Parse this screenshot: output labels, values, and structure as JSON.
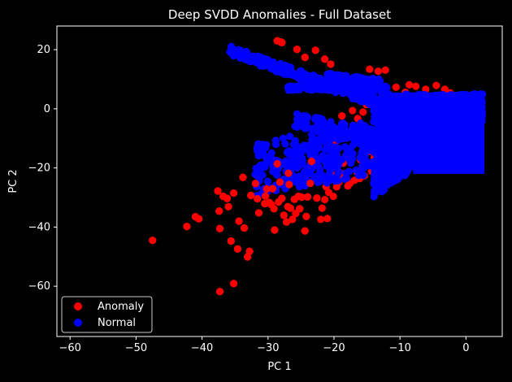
{
  "chart_data": {
    "type": "scatter",
    "title": "Deep SVDD Anomalies - Full Dataset",
    "xlabel": "PC 1",
    "ylabel": "PC 2",
    "xlim": [
      -62,
      5.5
    ],
    "ylim": [
      -77,
      28
    ],
    "xticks": [
      -60,
      -50,
      -40,
      -30,
      -20,
      -10,
      0
    ],
    "yticks": [
      20,
      0,
      -20,
      -40,
      -60
    ],
    "xtick_labels": [
      "−60",
      "−50",
      "−40",
      "−30",
      "−20",
      "−10",
      "0"
    ],
    "ytick_labels": [
      "20",
      "0",
      "−20",
      "−40",
      "−60"
    ],
    "grid": false,
    "legend_position": "lower-left",
    "background": "#000000",
    "series": [
      {
        "name": "Anomaly",
        "color": "#ff0000",
        "points": [
          [
            -47.5,
            -44.5
          ],
          [
            -42.3,
            -39.8
          ],
          [
            -41,
            -36.5
          ],
          [
            -40.5,
            -37.2
          ],
          [
            -37.6,
            -27.8
          ],
          [
            -37.4,
            -34.6
          ],
          [
            -37.3,
            -40.5
          ],
          [
            -37.3,
            -61.8
          ],
          [
            -36.8,
            -29.6
          ],
          [
            -36.2,
            -30.3
          ],
          [
            -36,
            -33.1
          ],
          [
            -35.6,
            -44.7
          ],
          [
            -35.2,
            -28.5
          ],
          [
            -35.2,
            -59.1
          ],
          [
            -34.6,
            -47.4
          ],
          [
            -34.4,
            -38
          ],
          [
            -33.8,
            -23.2
          ],
          [
            -33.6,
            -40.3
          ],
          [
            -33.1,
            -50.1
          ],
          [
            -32.8,
            -48.2
          ],
          [
            -32.6,
            -29.3
          ],
          [
            -31.9,
            -25.3
          ],
          [
            -31.6,
            -30.4
          ],
          [
            -31.4,
            -35.2
          ],
          [
            -30.5,
            -32.1
          ],
          [
            -30.4,
            -29.5
          ],
          [
            -30.2,
            -27.1
          ],
          [
            -29.8,
            -31.7
          ],
          [
            -29.5,
            -32.4
          ],
          [
            -29.3,
            -27
          ],
          [
            -29.1,
            -33.8
          ],
          [
            -29,
            -41
          ],
          [
            -28.6,
            -18.6
          ],
          [
            -28.4,
            -31.5
          ],
          [
            -28.2,
            -24.8
          ],
          [
            -27.9,
            -30.3
          ],
          [
            -27.6,
            -36
          ],
          [
            -27.2,
            -38.3
          ],
          [
            -27,
            -33.1
          ],
          [
            -26.9,
            -21.8
          ],
          [
            -26.8,
            -25.6
          ],
          [
            -26.6,
            -33.6
          ],
          [
            -26.3,
            -37.4
          ],
          [
            -26,
            -30.6
          ],
          [
            -25.8,
            -35.4
          ],
          [
            -25.4,
            -29.6
          ],
          [
            -25.2,
            -33.8
          ],
          [
            -24.9,
            -29.9
          ],
          [
            -24.4,
            -41.3
          ],
          [
            -24.2,
            -36.4
          ],
          [
            -24,
            -29.8
          ],
          [
            -23.6,
            -25.2
          ],
          [
            -23.4,
            -17.8
          ],
          [
            -22.6,
            -30.2
          ],
          [
            -22,
            -37.4
          ],
          [
            -21.8,
            -33.6
          ],
          [
            -21.4,
            -30.7
          ],
          [
            -21.2,
            -26.4
          ],
          [
            -21,
            -37.1
          ],
          [
            -20.8,
            -28.3
          ],
          [
            -20.4,
            -22.1
          ],
          [
            -20.1,
            -29.6
          ],
          [
            -19.6,
            -26.4
          ],
          [
            -19.3,
            -24.9
          ],
          [
            -18.8,
            -23.6
          ],
          [
            -18.6,
            -18.4
          ],
          [
            -18.3,
            -21.8
          ],
          [
            -17.9,
            -26.1
          ],
          [
            -17.6,
            -25.3
          ],
          [
            -16.9,
            -24.2
          ],
          [
            -16.5,
            -21.4
          ],
          [
            -16.1,
            -23.6
          ],
          [
            -15.8,
            -20.5
          ],
          [
            -15.4,
            -22.6
          ],
          [
            -15.1,
            -11.7
          ],
          [
            -14.6,
            -14.4
          ],
          [
            -14.3,
            -21.1
          ],
          [
            -13.9,
            -16.4
          ],
          [
            -13.6,
            -13.1
          ],
          [
            -13.1,
            -19.6
          ],
          [
            -12.6,
            -9.6
          ],
          [
            -12.1,
            -10.8
          ],
          [
            -11.8,
            -6.4
          ],
          [
            -11.2,
            -8.6
          ],
          [
            -10.6,
            -16.2
          ],
          [
            -9.8,
            -12.3
          ],
          [
            -9.2,
            -10.1
          ],
          [
            -28.6,
            23
          ],
          [
            -28.1,
            22.6
          ],
          [
            -27.9,
            22.4
          ],
          [
            -25.6,
            20.1
          ],
          [
            -24.4,
            17.4
          ],
          [
            -22.8,
            19.8
          ],
          [
            -21.4,
            16.8
          ],
          [
            -20.5,
            15.1
          ],
          [
            -18.8,
            -2.4
          ],
          [
            -17.2,
            -0.6
          ],
          [
            -16.4,
            -3.3
          ],
          [
            -15.6,
            -1.1
          ],
          [
            -15.1,
            1.4
          ],
          [
            -14.3,
            3.1
          ],
          [
            -13.2,
            -4.8
          ],
          [
            -12.6,
            1.6
          ],
          [
            -11.8,
            -1.4
          ],
          [
            -10.7,
            0.9
          ],
          [
            -9.6,
            -2.4
          ],
          [
            -8.2,
            -1.5
          ],
          [
            -7.1,
            1.2
          ],
          [
            -6.2,
            -0.8
          ],
          [
            -10,
            2.6
          ],
          [
            -9.3,
            -6.2
          ],
          [
            -14.6,
            13.4
          ],
          [
            -13.3,
            12.7
          ],
          [
            -12.2,
            13.1
          ],
          [
            -10.6,
            7.3
          ],
          [
            -9.2,
            5.6
          ],
          [
            -8.6,
            8.1
          ],
          [
            -7.6,
            7.6
          ],
          [
            -6.1,
            6.6
          ],
          [
            -4.5,
            7.9
          ],
          [
            -3.2,
            6.6
          ],
          [
            -2.4,
            5.4
          ],
          [
            -1.2,
            3.7
          ],
          [
            -6.6,
            -6.2
          ],
          [
            -4.2,
            -4.1
          ],
          [
            -3.1,
            -8.6
          ],
          [
            -2.5,
            -10.5
          ],
          [
            -1.6,
            -6.1
          ],
          [
            -0.8,
            -3.5
          ],
          [
            -20.6,
            -13.6
          ],
          [
            -19.8,
            -11.2
          ],
          [
            -18.1,
            -9.6
          ],
          [
            -17.4,
            -15.1
          ],
          [
            -16,
            -17.2
          ],
          [
            -14.9,
            -18.8
          ]
        ]
      },
      {
        "name": "Normal",
        "color": "#0000ff",
        "points": []
      }
    ]
  },
  "legend": {
    "items": [
      {
        "label": "Anomaly",
        "color": "#ff0000"
      },
      {
        "label": "Normal",
        "color": "#0000ff"
      }
    ]
  }
}
